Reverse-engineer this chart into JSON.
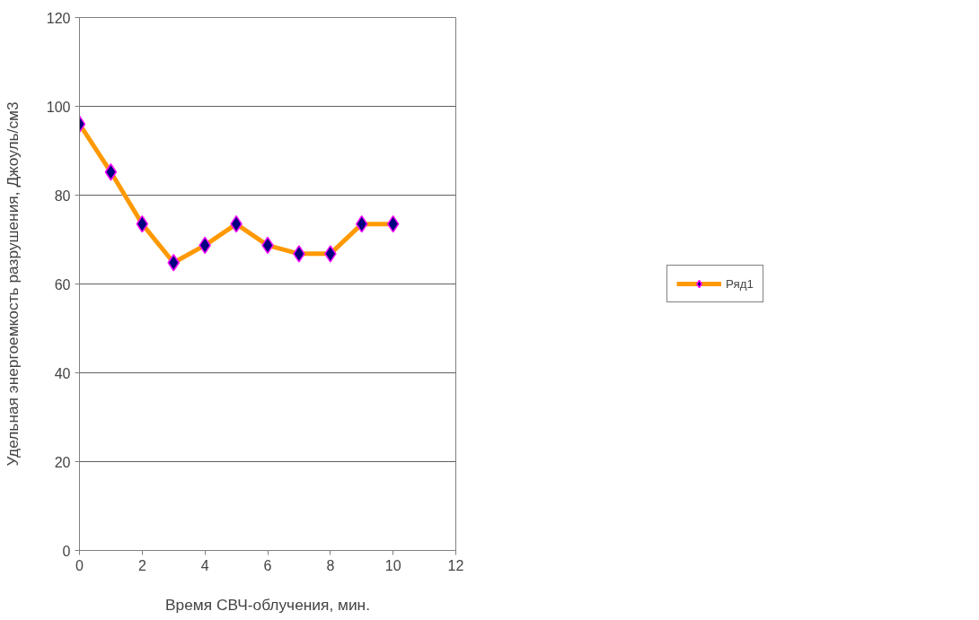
{
  "chart_data": {
    "type": "line",
    "xlabel": "Время СВЧ-облучения, мин.",
    "ylabel": "Удельная энергоемкость разрушения, Джоуль/см3",
    "x": [
      0,
      1,
      2,
      3,
      4,
      5,
      6,
      7,
      8,
      9,
      10
    ],
    "series": [
      {
        "name": "Ряд1",
        "color": "#ff9900",
        "values": [
          96,
          85.2,
          73.5,
          64.8,
          68.7,
          73.5,
          68.7,
          66.8,
          66.8,
          73.5,
          73.5
        ]
      }
    ],
    "xlim": [
      0,
      12
    ],
    "xticks": [
      0,
      2,
      4,
      6,
      8,
      10,
      12
    ],
    "ylim": [
      0,
      120
    ],
    "yticks": [
      0,
      20,
      40,
      60,
      80,
      100,
      120
    ],
    "grid": "y",
    "legend": "right",
    "marker": "diamond",
    "line_style": "solid"
  }
}
